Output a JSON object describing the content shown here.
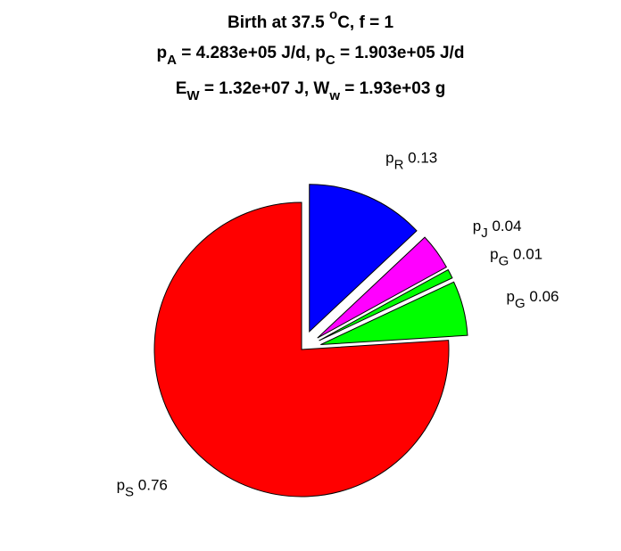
{
  "chart_data": {
    "type": "pie",
    "title": [
      [
        {
          "text": "Birth at 37.5 "
        },
        {
          "text": "o",
          "shift": "sup"
        },
        {
          "text": "C, f = 1"
        }
      ],
      [
        {
          "text": "p"
        },
        {
          "text": "A",
          "shift": "sub"
        },
        {
          "text": " = 4.283e+05 J/d, p"
        },
        {
          "text": "C",
          "shift": "sub"
        },
        {
          "text": " = 1.903e+05 J/d"
        }
      ],
      [
        {
          "text": "E"
        },
        {
          "text": "W",
          "shift": "sub"
        },
        {
          "text": " = 1.32e+07 J, W"
        },
        {
          "text": "w",
          "shift": "sub"
        },
        {
          "text": " = 1.93e+03 g"
        }
      ]
    ],
    "slices": [
      {
        "name": "p",
        "sub": "R",
        "value": 0.13,
        "color": "#0000ff",
        "explode": true
      },
      {
        "name": "p",
        "sub": "J",
        "value": 0.04,
        "color": "#ff00ff",
        "explode": true
      },
      {
        "name": "p",
        "sub": "G",
        "value": 0.01,
        "color": "#00ff00",
        "explode": true
      },
      {
        "name": "p",
        "sub": "G",
        "value": 0.06,
        "color": "#00ff00",
        "explode": true
      },
      {
        "name": "p",
        "sub": "S",
        "value": 0.76,
        "color": "#ff0000",
        "explode": false
      }
    ]
  }
}
